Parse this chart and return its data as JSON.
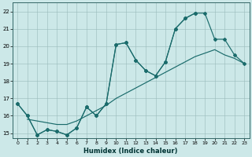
{
  "xlabel": "Humidex (Indice chaleur)",
  "bg_color": "#cce8e8",
  "grid_color": "#99bbbb",
  "line_color": "#1a6b6b",
  "xlim_min": -0.5,
  "xlim_max": 23.5,
  "ylim_min": 14.7,
  "ylim_max": 22.5,
  "xticks": [
    0,
    1,
    2,
    3,
    4,
    5,
    6,
    7,
    8,
    9,
    10,
    11,
    12,
    13,
    14,
    15,
    16,
    17,
    18,
    19,
    20,
    21,
    22,
    23
  ],
  "yticks": [
    15,
    16,
    17,
    18,
    19,
    20,
    21,
    22
  ],
  "line1_x": [
    0,
    1,
    2,
    3,
    4,
    5,
    6,
    7,
    8,
    9,
    10,
    11,
    12,
    13,
    14,
    15,
    16,
    17,
    18
  ],
  "line1_y": [
    16.7,
    16.0,
    14.9,
    15.2,
    15.1,
    14.9,
    15.3,
    16.5,
    16.0,
    16.7,
    20.1,
    20.2,
    19.2,
    18.6,
    18.3,
    19.1,
    21.0,
    21.6,
    21.9
  ],
  "line2_x": [
    1,
    2,
    3,
    4,
    5,
    6,
    7,
    8,
    9,
    10,
    11,
    12,
    13,
    14,
    15,
    16,
    17,
    18,
    19,
    20,
    21,
    22,
    23
  ],
  "line2_y": [
    15.8,
    15.7,
    15.6,
    15.5,
    15.5,
    15.7,
    16.0,
    16.3,
    16.6,
    17.0,
    17.3,
    17.6,
    17.9,
    18.2,
    18.5,
    18.8,
    19.1,
    19.4,
    19.6,
    19.8,
    19.5,
    19.3,
    19.0
  ],
  "line3_x": [
    0,
    1,
    2,
    3,
    4,
    5,
    6,
    7,
    8,
    9,
    10,
    11,
    12,
    13,
    14,
    15,
    16,
    17,
    18,
    19,
    20,
    21,
    22,
    23
  ],
  "line3_y": [
    16.7,
    16.0,
    14.9,
    15.2,
    15.1,
    14.9,
    15.3,
    16.5,
    16.0,
    16.7,
    20.1,
    20.2,
    19.2,
    18.6,
    18.3,
    19.1,
    21.0,
    21.6,
    21.9,
    21.9,
    20.4,
    20.4,
    19.5,
    19.0
  ]
}
